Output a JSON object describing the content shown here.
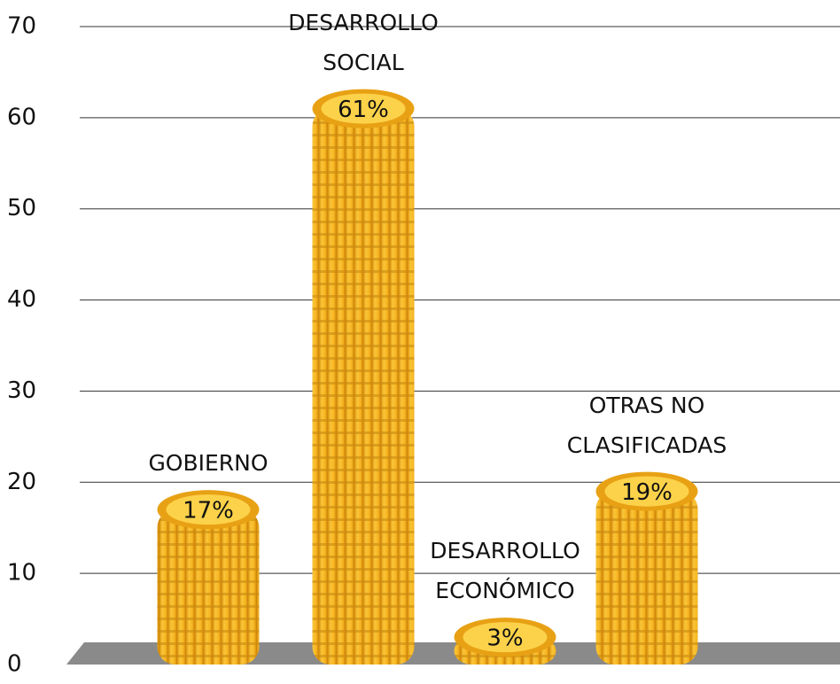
{
  "chart_data": {
    "type": "bar",
    "categories": [
      "GOBIERNO",
      "DESARROLLO SOCIAL",
      "DESARROLLO ECONÓMICO",
      "OTRAS NO CLASIFICADAS"
    ],
    "values": [
      17,
      61,
      3,
      19
    ],
    "value_labels": [
      "17%",
      "61%",
      "3%",
      "19%"
    ],
    "color": "#f5b82a",
    "ylim": [
      0,
      70
    ],
    "yticks": [
      0,
      10,
      20,
      30,
      40,
      50,
      60,
      70
    ],
    "grid": true
  }
}
